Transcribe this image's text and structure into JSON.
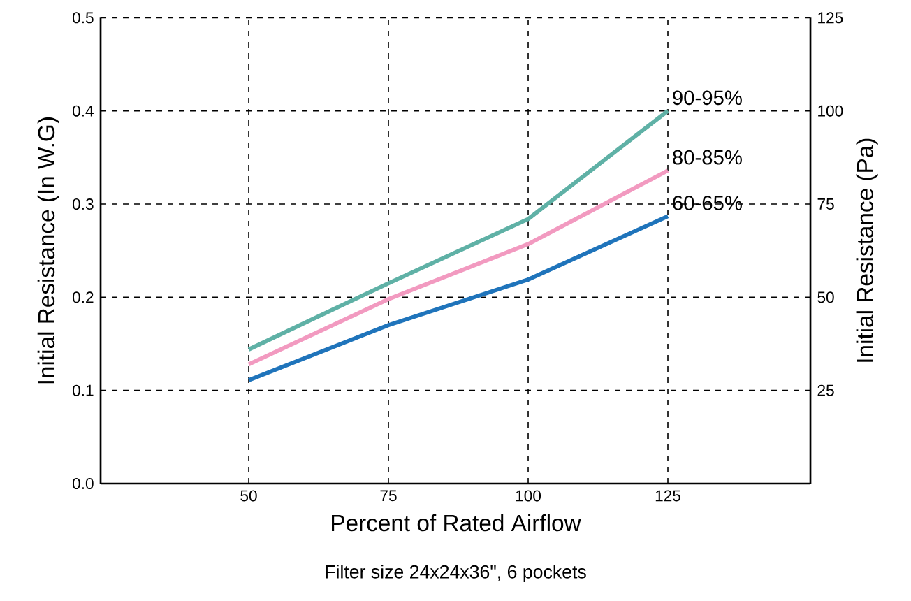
{
  "chart_data": {
    "type": "line",
    "xlabel": "Percent of Rated Airflow",
    "ylabel": "Initial Resistance (In W.G)",
    "y2label": "Initial Resistance (Pa)",
    "x": [
      50,
      75,
      100,
      125
    ],
    "xlim": [
      23.5,
      150.5
    ],
    "xticks": [
      50,
      75,
      100,
      125
    ],
    "ylim": [
      0,
      0.5
    ],
    "yticks": [
      {
        "value": 0,
        "label": "0.0"
      },
      {
        "value": 0.1,
        "label": "0.1"
      },
      {
        "value": 0.2,
        "label": "0.2"
      },
      {
        "value": 0.3,
        "label": "0.3"
      },
      {
        "value": 0.4,
        "label": "0.4"
      },
      {
        "value": 0.5,
        "label": "0.5"
      }
    ],
    "y2lim": [
      0,
      125
    ],
    "y2ticks": [
      25,
      50,
      75,
      100,
      125
    ],
    "grid": true,
    "series": [
      {
        "name": "90-95%",
        "color": "#5fb1a6",
        "values": [
          0.144,
          0.215,
          0.284,
          0.4
        ]
      },
      {
        "name": "80-85%",
        "color": "#f29ac0",
        "values": [
          0.128,
          0.198,
          0.257,
          0.336
        ]
      },
      {
        "name": "60-65%",
        "color": "#1f74bb",
        "values": [
          0.111,
          0.17,
          0.219,
          0.287
        ]
      }
    ],
    "annotations": [
      "Filter size 24x24x36\", 6 pockets"
    ]
  }
}
